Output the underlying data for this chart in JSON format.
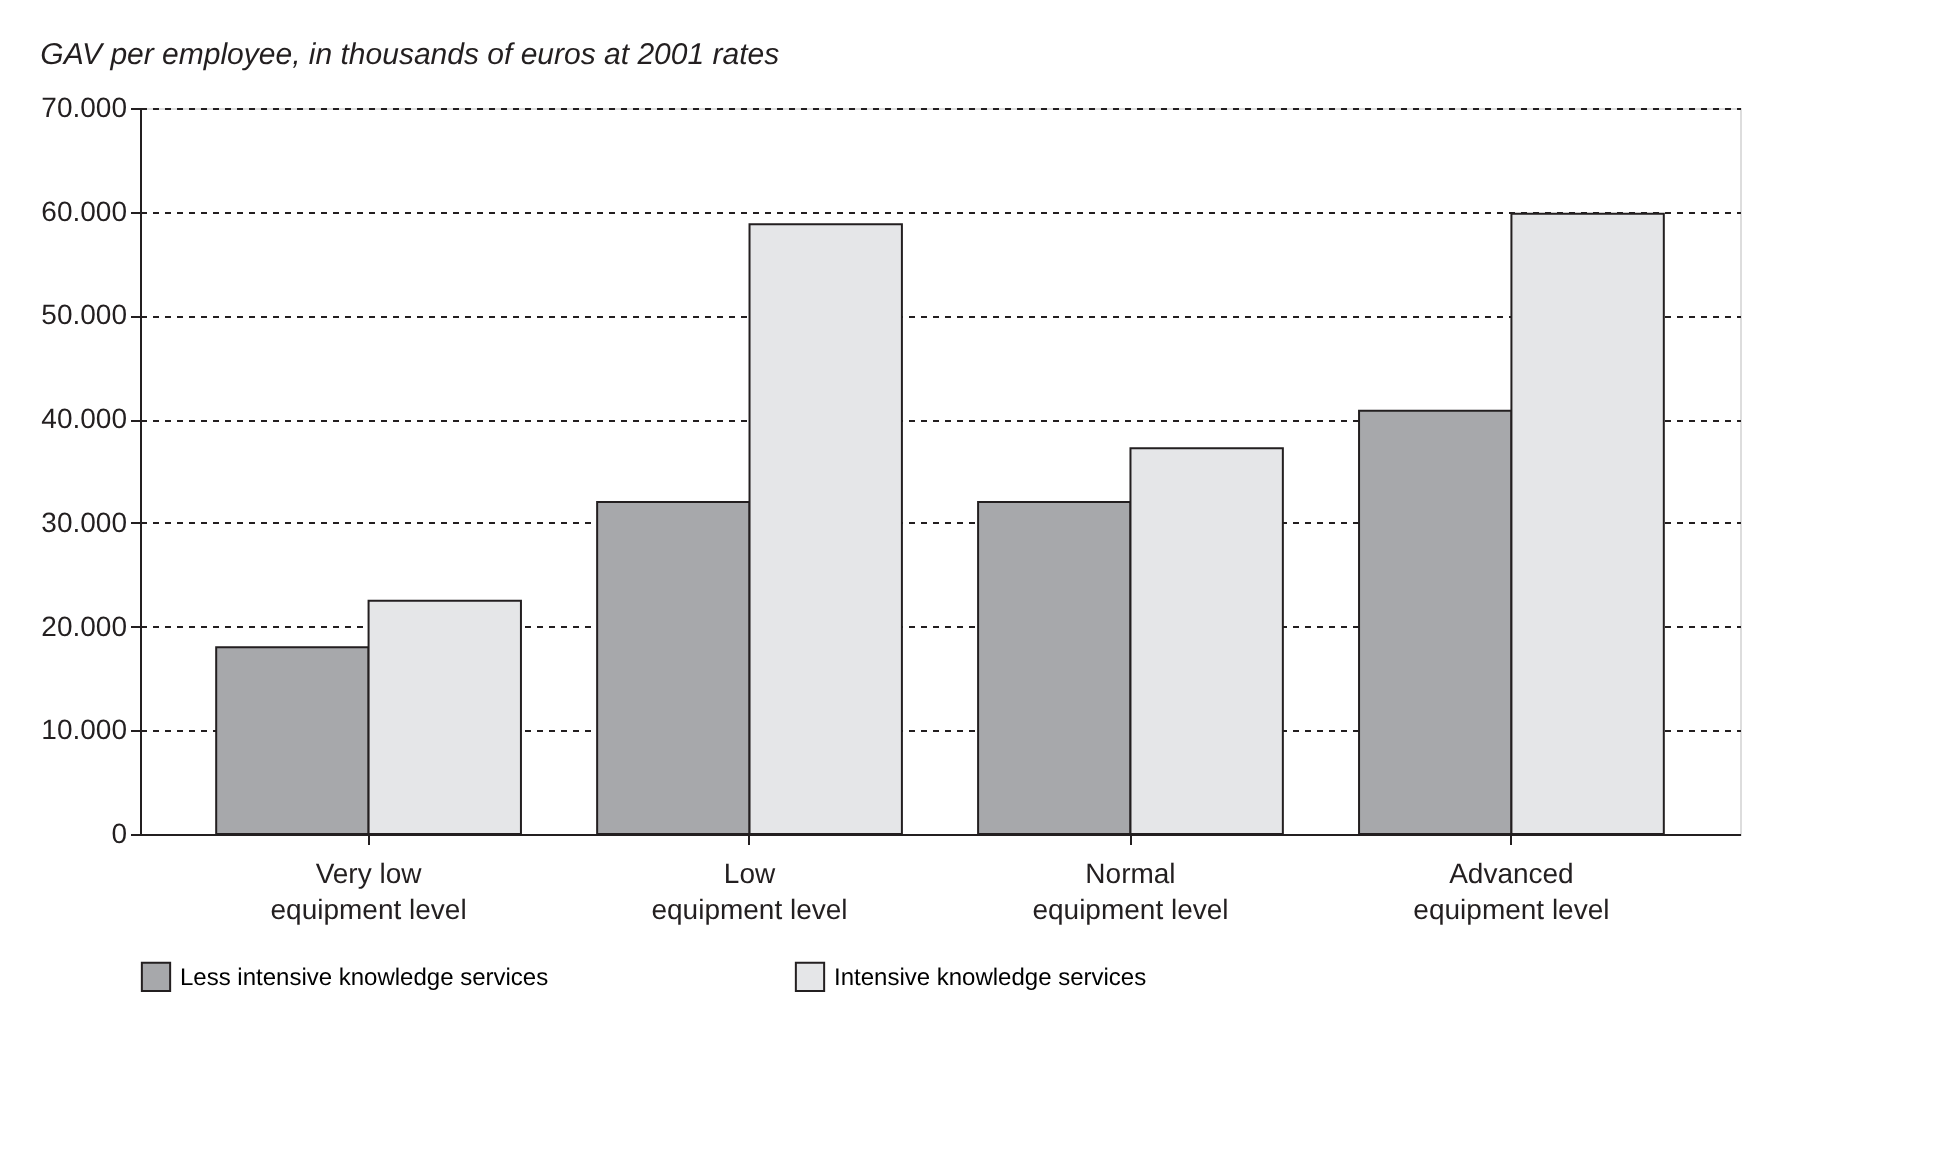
{
  "chart_data": {
    "type": "bar",
    "title": "GAV per employee, in thousands of euros at 2001 rates",
    "categories": [
      "Very low equipment level",
      "Low equipment level",
      "Normal equipment level",
      "Advanced equipment level"
    ],
    "series": [
      {
        "name": "Less intensive knowledge services",
        "color": "#a7a8ab",
        "values": [
          18000,
          32000,
          32000,
          40800
        ]
      },
      {
        "name": "Intensive knowledge services",
        "color": "#e5e6e8",
        "values": [
          22500,
          58800,
          37200,
          59800
        ]
      }
    ],
    "ylim": [
      0,
      70000
    ],
    "yticks": [
      0,
      {
        "value": 10000,
        "label": "10.000"
      },
      {
        "value": 20000,
        "label": "20.000"
      },
      {
        "value": 30000,
        "label": "30.000"
      },
      {
        "value": 40000,
        "label": "40.000"
      },
      {
        "value": 50000,
        "label": "50.000"
      },
      {
        "value": 60000,
        "label": "60.000"
      },
      {
        "value": 70000,
        "label": "70.000"
      }
    ],
    "grid": "y",
    "legend": "bottom"
  }
}
